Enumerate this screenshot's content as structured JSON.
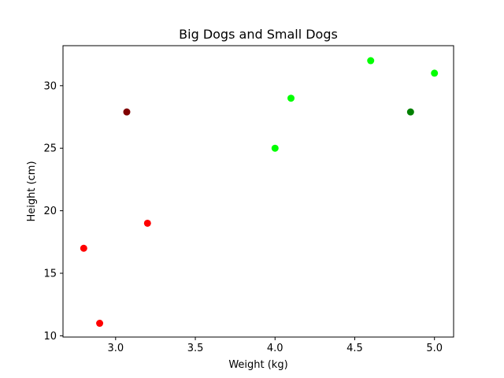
{
  "chart_data": {
    "type": "scatter",
    "title": "Big Dogs and Small Dogs",
    "xlabel": "Weight (kg)",
    "ylabel": "Height (cm)",
    "xlim": [
      2.67,
      5.12
    ],
    "ylim": [
      9.9,
      33.2
    ],
    "xticks": [
      3.0,
      3.5,
      4.0,
      4.5,
      5.0
    ],
    "xtick_labels": [
      "3.0",
      "3.5",
      "4.0",
      "4.5",
      "5.0"
    ],
    "yticks": [
      10,
      15,
      20,
      25,
      30
    ],
    "ytick_labels": [
      "10",
      "15",
      "20",
      "25",
      "30"
    ],
    "grid": false,
    "points": [
      {
        "x": 2.8,
        "y": 17,
        "color": "#ff0000"
      },
      {
        "x": 2.9,
        "y": 11,
        "color": "#ff0000"
      },
      {
        "x": 3.2,
        "y": 19,
        "color": "#ff0000"
      },
      {
        "x": 3.07,
        "y": 27.9,
        "color": "#800000"
      },
      {
        "x": 4.0,
        "y": 25,
        "color": "#00ff00"
      },
      {
        "x": 4.1,
        "y": 29,
        "color": "#00ff00"
      },
      {
        "x": 4.6,
        "y": 32,
        "color": "#00ff00"
      },
      {
        "x": 5.0,
        "y": 31,
        "color": "#00ff00"
      },
      {
        "x": 4.85,
        "y": 27.9,
        "color": "#008000"
      }
    ]
  }
}
